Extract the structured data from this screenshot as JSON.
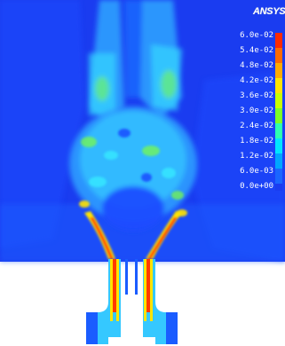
{
  "logo": "ANSYS",
  "legend": {
    "ticks": [
      "6.0e-02",
      "5.4e-02",
      "4.8e-02",
      "4.2e-02",
      "3.6e-02",
      "3.0e-02",
      "2.4e-02",
      "1.8e-02",
      "1.2e-02",
      "6.0e-03",
      "0.0e+00"
    ],
    "colors": [
      "#ff2a00",
      "#ff6a00",
      "#ffaa00",
      "#ffe400",
      "#c8ff00",
      "#7cff26",
      "#2dffb0",
      "#00e6ff",
      "#00a6ff",
      "#1a66ff",
      "#1a3cf0"
    ]
  },
  "colors": {
    "background": "#1a3cf0",
    "low": "#1a56ff",
    "mid": "#2fb6ff",
    "cyan": "#35e0ff",
    "green": "#7cff40",
    "yellow": "#ffe400",
    "hot": "#ff3a00",
    "nozzle_wall": "#ffffff"
  }
}
